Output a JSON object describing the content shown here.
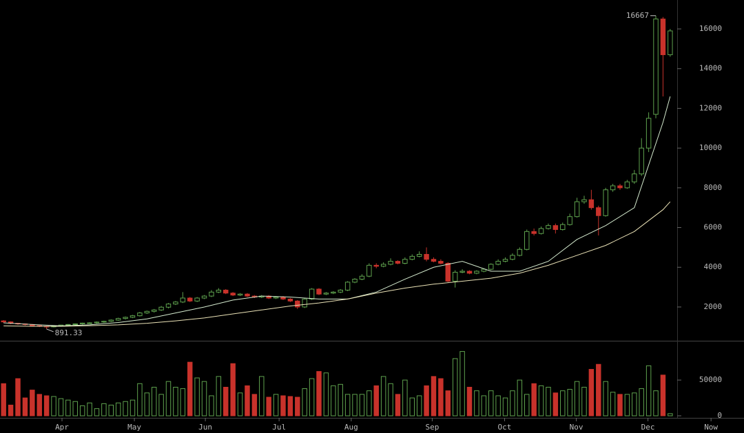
{
  "chart_data": {
    "type": "candlestick",
    "xlim": [
      -0.5,
      103.3
    ],
    "xticks": [
      {
        "value": 8.15,
        "label": "Apr"
      },
      {
        "value": 18.25,
        "label": "May"
      },
      {
        "value": 28.15,
        "label": "Jun"
      },
      {
        "value": 38.44,
        "label": "Jul"
      },
      {
        "value": 48.5,
        "label": "Aug"
      },
      {
        "value": 59.8,
        "label": "Sep"
      },
      {
        "value": 69.9,
        "label": "Oct"
      },
      {
        "value": 79.9,
        "label": "Nov"
      },
      {
        "value": 89.9,
        "label": "Dec"
      },
      {
        "value": 98.7,
        "label": "Now"
      }
    ],
    "ylim": [
      300,
      17200
    ],
    "yticks": [
      2000,
      4000,
      6000,
      8000,
      10000,
      12000,
      14000,
      16000
    ],
    "up_color": "#5fa24e",
    "down_color": "#c8322b",
    "open": [
      1300,
      1250,
      1180,
      1150,
      1120,
      1060,
      1030,
      1000,
      1050,
      1090,
      1120,
      1150,
      1190,
      1200,
      1240,
      1280,
      1340,
      1420,
      1480,
      1560,
      1700,
      1780,
      1850,
      1990,
      2150,
      2250,
      2450,
      2300,
      2450,
      2550,
      2750,
      2850,
      2700,
      2600,
      2650,
      2550,
      2500,
      2550,
      2450,
      2500,
      2400,
      2300,
      2000,
      2400,
      2900,
      2650,
      2700,
      2750,
      2850,
      3250,
      3400,
      3550,
      4100,
      4050,
      4150,
      4300,
      4200,
      4400,
      4550,
      4650,
      4400,
      4300,
      4200,
      3300,
      3750,
      3800,
      3700,
      3800,
      3900,
      4150,
      4300,
      4400,
      4600,
      4900,
      5800,
      5700,
      5950,
      6100,
      5900,
      6150,
      6550,
      7300,
      7400,
      7000,
      6600,
      7900,
      8100,
      8000,
      8300,
      8700,
      10000,
      11700,
      16500,
      14700
    ],
    "high": [
      1340,
      1280,
      1200,
      1170,
      1140,
      1080,
      1050,
      1070,
      1110,
      1140,
      1170,
      1210,
      1230,
      1270,
      1310,
      1380,
      1460,
      1520,
      1600,
      1750,
      1820,
      1900,
      2050,
      2200,
      2300,
      2750,
      2500,
      2500,
      2600,
      2850,
      2950,
      2900,
      2750,
      2700,
      2700,
      2600,
      2600,
      2600,
      2550,
      2550,
      2450,
      2350,
      2450,
      2950,
      2950,
      2750,
      2800,
      2900,
      3300,
      3450,
      3650,
      4200,
      4200,
      4250,
      4450,
      4350,
      4500,
      4650,
      4800,
      5000,
      4500,
      4400,
      4250,
      3850,
      3900,
      3850,
      3850,
      3950,
      4200,
      4400,
      4500,
      4700,
      5000,
      5900,
      5950,
      6050,
      6200,
      6200,
      6250,
      6700,
      7500,
      7600,
      7900,
      7100,
      8000,
      8200,
      8200,
      8400,
      8900,
      10500,
      11800,
      16667,
      16600,
      16000
    ],
    "low": [
      1200,
      1130,
      1100,
      1070,
      1010,
      990,
      891.33,
      970,
      1010,
      1050,
      1080,
      1110,
      1150,
      1160,
      1200,
      1240,
      1300,
      1370,
      1440,
      1520,
      1650,
      1720,
      1800,
      1930,
      2100,
      2200,
      2250,
      2250,
      2400,
      2500,
      2700,
      2650,
      2550,
      2550,
      2500,
      2450,
      2450,
      2400,
      2400,
      2350,
      2250,
      1900,
      1950,
      2350,
      2600,
      2600,
      2650,
      2700,
      2800,
      3200,
      3350,
      3500,
      3950,
      4000,
      4100,
      4150,
      4150,
      4350,
      4500,
      4300,
      4250,
      4150,
      3250,
      2980,
      3700,
      3650,
      3650,
      3750,
      3850,
      4100,
      4250,
      4350,
      4550,
      4850,
      5600,
      5650,
      5900,
      5700,
      5850,
      6100,
      6500,
      7200,
      6900,
      5600,
      6550,
      7800,
      7900,
      7950,
      8200,
      8600,
      9800,
      11500,
      12600,
      14600
    ],
    "close": [
      1250,
      1180,
      1150,
      1120,
      1060,
      1030,
      1000,
      1050,
      1090,
      1120,
      1150,
      1190,
      1200,
      1240,
      1280,
      1340,
      1420,
      1480,
      1560,
      1700,
      1780,
      1850,
      1990,
      2150,
      2250,
      2450,
      2300,
      2450,
      2550,
      2750,
      2850,
      2700,
      2600,
      2650,
      2550,
      2500,
      2550,
      2450,
      2500,
      2400,
      2300,
      2000,
      2400,
      2900,
      2650,
      2700,
      2750,
      2850,
      3250,
      3400,
      3550,
      4100,
      4050,
      4150,
      4300,
      4200,
      4400,
      4550,
      4650,
      4400,
      4300,
      4200,
      3300,
      3750,
      3800,
      3700,
      3800,
      3900,
      4150,
      4300,
      4400,
      4600,
      4900,
      5800,
      5700,
      5950,
      6100,
      5900,
      6150,
      6550,
      7300,
      7400,
      7000,
      6600,
      7900,
      8100,
      8000,
      8300,
      8700,
      10000,
      11500,
      16500,
      14700,
      15900
    ],
    "moving_averages": [
      {
        "color": "#d6ecd0",
        "x": [
          0,
          4,
          8,
          12,
          16,
          20,
          24,
          28,
          32,
          36,
          40,
          44,
          48,
          52,
          56,
          60,
          64,
          68,
          72,
          76,
          80,
          84,
          88,
          92,
          93
        ],
        "values": [
          1200,
          1120,
          1050,
          1100,
          1220,
          1400,
          1700,
          2000,
          2350,
          2550,
          2500,
          2400,
          2400,
          2750,
          3400,
          4000,
          4300,
          3800,
          3800,
          4300,
          5400,
          6100,
          7000,
          11300,
          12600
        ]
      },
      {
        "color": "#ece4b8",
        "x": [
          0,
          4,
          8,
          12,
          16,
          20,
          24,
          28,
          32,
          36,
          40,
          44,
          48,
          52,
          56,
          60,
          64,
          68,
          72,
          76,
          80,
          84,
          88,
          92,
          93
        ],
        "values": [
          1050,
          1030,
          1030,
          1060,
          1100,
          1180,
          1300,
          1450,
          1650,
          1850,
          2050,
          2200,
          2400,
          2700,
          2950,
          3150,
          3300,
          3450,
          3700,
          4100,
          4600,
          5100,
          5800,
          6900,
          7300
        ]
      }
    ],
    "volume": {
      "ylim": [
        0,
        105000
      ],
      "yticks": [
        0,
        50000
      ],
      "values": [
        45000,
        15000,
        52000,
        25000,
        36000,
        30000,
        28000,
        27000,
        24000,
        22000,
        20000,
        14000,
        18000,
        10000,
        17000,
        15000,
        18000,
        20000,
        22000,
        45000,
        32000,
        40000,
        30000,
        48000,
        40000,
        38000,
        75000,
        53000,
        48000,
        28000,
        55000,
        40000,
        73000,
        32000,
        42000,
        30000,
        55000,
        26000,
        30000,
        28000,
        27000,
        26000,
        38000,
        52000,
        62000,
        60000,
        42000,
        44000,
        30000,
        30000,
        30000,
        35000,
        42000,
        55000,
        45000,
        30000,
        50000,
        25000,
        28000,
        42000,
        55000,
        52000,
        35000,
        80000,
        90000,
        40000,
        35000,
        28000,
        35000,
        28000,
        25000,
        35000,
        50000,
        30000,
        45000,
        42000,
        40000,
        32000,
        35000,
        37000,
        48000,
        40000,
        65000,
        72000,
        48000,
        33000,
        30000,
        30000,
        32000,
        38000,
        70000,
        35000,
        57000,
        3000
      ]
    }
  }
}
